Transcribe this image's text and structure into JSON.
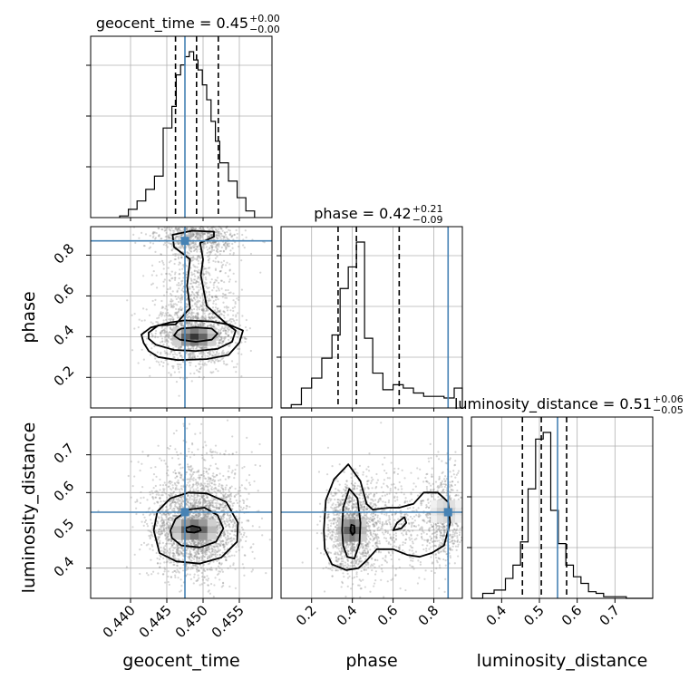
{
  "chart_data": {
    "type": "corner",
    "parameters": [
      "geocent_time",
      "phase",
      "luminosity_distance"
    ],
    "truth_color": "#4682b4",
    "truths": {
      "geocent_time": 0.4475,
      "phase": 0.87,
      "luminosity_distance": 0.548
    },
    "ranges": {
      "geocent_time": [
        0.4345,
        0.4595
      ],
      "phase": [
        0.05,
        0.94
      ],
      "luminosity_distance": [
        0.32,
        0.8
      ]
    },
    "ticks": {
      "geocent_time": {
        "values": [
          0.44,
          0.445,
          0.45,
          0.455
        ],
        "labels": [
          "0.440",
          "0.445",
          "0.450",
          "0.455"
        ]
      },
      "phase": {
        "values": [
          0.2,
          0.4,
          0.6,
          0.8
        ],
        "labels": [
          "0.2",
          "0.4",
          "0.6",
          "0.8"
        ]
      },
      "luminosity_distance": {
        "values": [
          0.4,
          0.5,
          0.6,
          0.7
        ],
        "labels": [
          "0.4",
          "0.5",
          "0.6",
          "0.7"
        ]
      }
    },
    "axis_labels": {
      "geocent_time": "geocent_time",
      "phase": "phase",
      "luminosity_distance": "luminosity_distance"
    },
    "titles": [
      {
        "param": "geocent_time",
        "prefix": "geocent_time = ",
        "value": "0.45",
        "plus": "+0.00",
        "minus": "−0.00"
      },
      {
        "param": "phase",
        "prefix": "phase = ",
        "value": "0.42",
        "plus": "+0.21",
        "minus": "−0.09"
      },
      {
        "param": "luminosity_distance",
        "prefix": "luminosity_distance = ",
        "value": "0.51",
        "plus": "+0.06",
        "minus": "−0.05"
      }
    ],
    "quantiles": {
      "geocent_time": [
        0.4462,
        0.4491,
        0.4521
      ],
      "phase": [
        0.33,
        0.42,
        0.63
      ],
      "luminosity_distance": [
        0.455,
        0.505,
        0.572
      ]
    },
    "histograms": {
      "geocent_time": {
        "edges": [
          0.4385,
          0.4397,
          0.4409,
          0.4421,
          0.4433,
          0.4445,
          0.4457,
          0.4463,
          0.4469,
          0.4475,
          0.4481,
          0.4487,
          0.4493,
          0.4499,
          0.4505,
          0.4511,
          0.4517,
          0.4523,
          0.4535,
          0.4547,
          0.4559,
          0.4571
        ],
        "values": [
          0.01,
          0.05,
          0.1,
          0.17,
          0.25,
          0.54,
          0.67,
          0.86,
          0.92,
          0.97,
          1.0,
          0.95,
          0.89,
          0.8,
          0.71,
          0.58,
          0.46,
          0.33,
          0.22,
          0.12,
          0.04
        ]
      },
      "phase": {
        "edges": [
          0.05,
          0.1,
          0.15,
          0.2,
          0.25,
          0.3,
          0.34,
          0.38,
          0.42,
          0.46,
          0.5,
          0.55,
          0.6,
          0.65,
          0.7,
          0.75,
          0.8,
          0.85,
          0.9,
          0.94
        ],
        "values": [
          0.0,
          0.02,
          0.12,
          0.18,
          0.3,
          0.44,
          0.72,
          0.85,
          1.0,
          0.42,
          0.21,
          0.11,
          0.14,
          0.12,
          0.09,
          0.07,
          0.07,
          0.06,
          0.12
        ]
      },
      "luminosity_distance": {
        "edges": [
          0.32,
          0.35,
          0.38,
          0.41,
          0.43,
          0.45,
          0.47,
          0.49,
          0.51,
          0.53,
          0.55,
          0.57,
          0.59,
          0.61,
          0.63,
          0.65,
          0.67,
          0.7,
          0.73,
          0.76,
          0.8
        ],
        "values": [
          0.0,
          0.03,
          0.05,
          0.12,
          0.2,
          0.34,
          0.66,
          0.96,
          1.0,
          0.53,
          0.33,
          0.2,
          0.13,
          0.09,
          0.04,
          0.03,
          0.01,
          0.01,
          0.0,
          0.0
        ]
      }
    }
  }
}
